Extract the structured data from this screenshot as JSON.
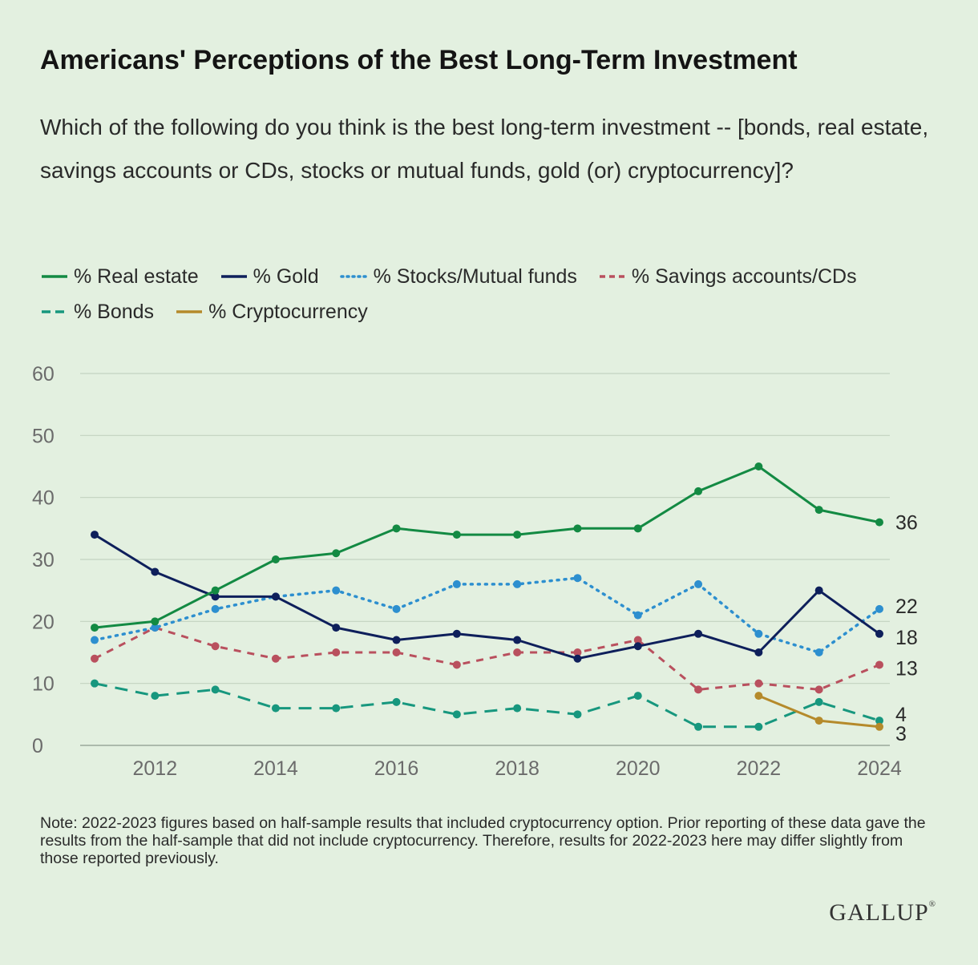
{
  "title": "Americans' Perceptions of the Best Long-Term Investment",
  "subtitle": "Which of the following do you think is the best long-term investment -- [bonds, real estate, savings accounts or CDs, stocks or mutual funds, gold (or) cryptocurrency]?",
  "note": "Note: 2022-2023 figures based on half-sample results that included cryptocurrency option. Prior reporting of these data gave the results from the half-sample that did not include cryptocurrency. Therefore, results for 2022-2023 here may differ slightly from those reported previously.",
  "logo": "GALLUP",
  "chart_data": {
    "type": "line",
    "title": "Americans' Perceptions of the Best Long-Term Investment",
    "xlabel": "",
    "ylabel": "",
    "xlim": [
      2011,
      2024
    ],
    "ylim": [
      0,
      60
    ],
    "y_ticks": [
      0,
      10,
      20,
      30,
      40,
      50,
      60
    ],
    "x_ticks": [
      2012,
      2014,
      2016,
      2018,
      2020,
      2022,
      2024
    ],
    "grid": true,
    "legend_position": "top",
    "series": [
      {
        "name": "% Real estate",
        "color": "#138a43",
        "dash": "solid",
        "x": [
          2011,
          2012,
          2013,
          2014,
          2015,
          2016,
          2017,
          2018,
          2019,
          2020,
          2021,
          2022,
          2023,
          2024
        ],
        "values": [
          19,
          20,
          25,
          30,
          31,
          35,
          34,
          34,
          35,
          35,
          41,
          45,
          38,
          36
        ],
        "end_label": "36"
      },
      {
        "name": "% Gold",
        "color": "#0e1f5b",
        "dash": "solid",
        "x": [
          2011,
          2012,
          2013,
          2014,
          2015,
          2016,
          2017,
          2018,
          2019,
          2020,
          2021,
          2022,
          2023,
          2024
        ],
        "values": [
          34,
          28,
          24,
          24,
          19,
          17,
          18,
          17,
          14,
          16,
          18,
          15,
          25,
          18
        ],
        "end_label": "18"
      },
      {
        "name": "% Stocks/Mutual funds",
        "color": "#2d8fcf",
        "dash": "dotted",
        "x": [
          2011,
          2012,
          2013,
          2014,
          2015,
          2016,
          2017,
          2018,
          2019,
          2020,
          2021,
          2022,
          2023,
          2024
        ],
        "values": [
          17,
          19,
          22,
          24,
          25,
          22,
          26,
          26,
          27,
          21,
          26,
          18,
          15,
          22
        ],
        "end_label": "22"
      },
      {
        "name": "% Savings accounts/CDs",
        "color": "#b9505e",
        "dash": "dashed",
        "x": [
          2011,
          2012,
          2013,
          2014,
          2015,
          2016,
          2017,
          2018,
          2019,
          2020,
          2021,
          2022,
          2023,
          2024
        ],
        "values": [
          14,
          19,
          16,
          14,
          15,
          15,
          13,
          15,
          15,
          17,
          9,
          10,
          9,
          13
        ],
        "end_label": "13"
      },
      {
        "name": "% Bonds",
        "color": "#17977e",
        "dash": "longdash",
        "x": [
          2011,
          2012,
          2013,
          2014,
          2015,
          2016,
          2017,
          2018,
          2019,
          2020,
          2021,
          2022,
          2023,
          2024
        ],
        "values": [
          10,
          8,
          9,
          6,
          6,
          7,
          5,
          6,
          5,
          8,
          3,
          3,
          7,
          4
        ],
        "end_label": "4"
      },
      {
        "name": "% Cryptocurrency",
        "color": "#b58a2b",
        "dash": "solid",
        "x": [
          2022,
          2023,
          2024
        ],
        "values": [
          8,
          4,
          3
        ],
        "end_label": "3"
      }
    ]
  }
}
